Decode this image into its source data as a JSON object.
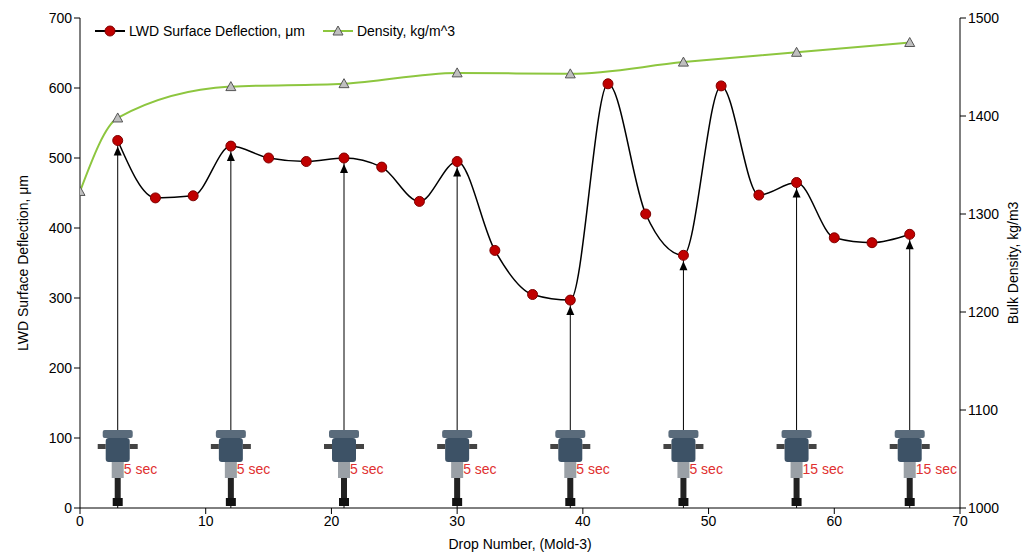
{
  "chart_data": {
    "type": "line",
    "xlabel": "Drop Number, (Mold-3)",
    "ylabel": "LWD Surface Deflection, μm",
    "y2label": "Bulk Density, kg/m3",
    "xlim": [
      0,
      70
    ],
    "xticks": [
      0,
      10,
      20,
      30,
      40,
      50,
      60,
      70
    ],
    "ylim": [
      0,
      700
    ],
    "yticks": [
      0,
      100,
      200,
      300,
      400,
      500,
      600,
      700
    ],
    "y2lim": [
      1000,
      1500
    ],
    "y2ticks": [
      1000,
      1100,
      1200,
      1300,
      1400,
      1500
    ],
    "legend": "upper left",
    "series": [
      {
        "name": "LWD Surface Deflection, μm",
        "color": "#c00000",
        "marker": "circle",
        "x": [
          3,
          6,
          9,
          12,
          15,
          18,
          21,
          24,
          27,
          30,
          33,
          36,
          39,
          42,
          45,
          48,
          51,
          54,
          57,
          60,
          63,
          66
        ],
        "values": [
          525,
          443,
          446,
          517,
          500,
          495,
          500,
          487,
          438,
          495,
          368,
          305,
          297,
          606,
          420,
          361,
          603,
          447,
          465,
          386,
          379,
          391
        ]
      },
      {
        "name": "Density, kg/m^3",
        "color": "#8dc63f",
        "marker": "triangle",
        "axis": "y2",
        "x": [
          0,
          3,
          12,
          21,
          30,
          39,
          48,
          57,
          66
        ],
        "values": [
          1323,
          1398,
          1430,
          1433,
          1444,
          1443,
          1455,
          1465,
          1475
        ]
      }
    ],
    "annotations": [
      {
        "x": 3,
        "text": "5 sec"
      },
      {
        "x": 12,
        "text": "5 sec"
      },
      {
        "x": 21,
        "text": "5 sec"
      },
      {
        "x": 30,
        "text": "5 sec"
      },
      {
        "x": 39,
        "text": "5 sec"
      },
      {
        "x": 48,
        "text": "5 sec"
      },
      {
        "x": 57,
        "text": "15 sec"
      },
      {
        "x": 66,
        "text": "15 sec"
      }
    ]
  }
}
